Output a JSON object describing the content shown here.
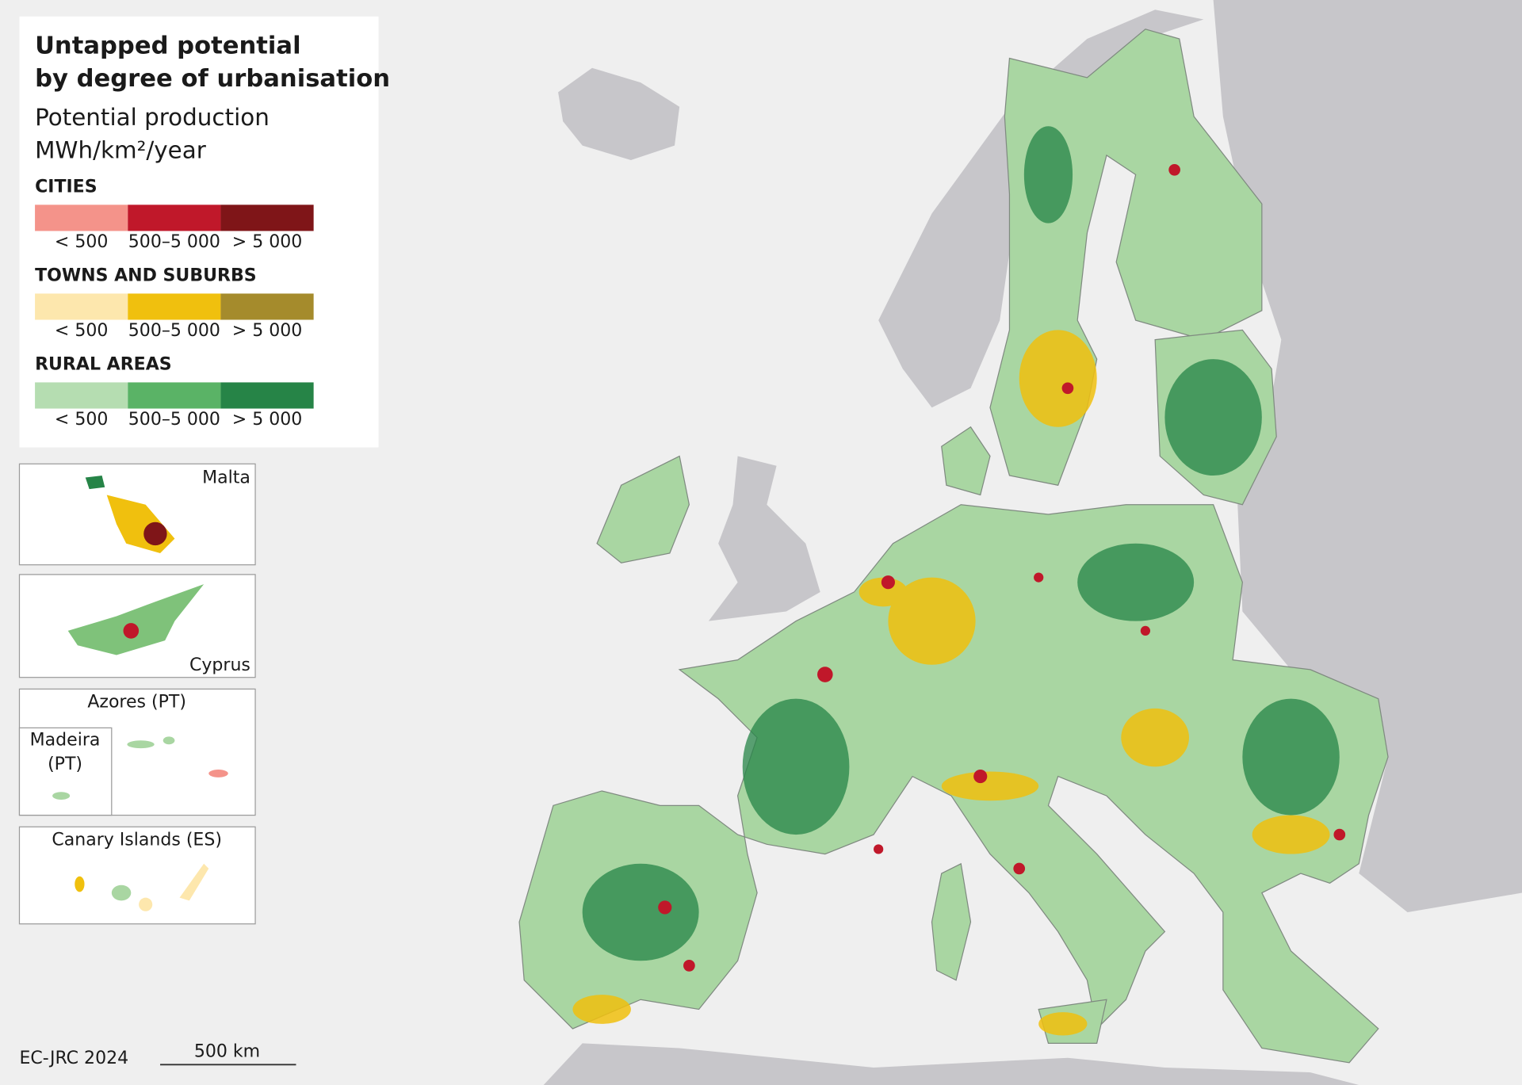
{
  "legend": {
    "title": [
      "Untapped potential",
      "by degree of urbanisation"
    ],
    "subtitle": [
      "Potential production",
      "MWh/km²/year"
    ],
    "groups": [
      {
        "name": "CITIES",
        "classes": [
          {
            "label": "< 500",
            "color": "#f4938a"
          },
          {
            "label": "500–5 000",
            "color": "#c0182a"
          },
          {
            "label": "> 5 000",
            "color": "#7f1518"
          }
        ]
      },
      {
        "name": "TOWNS AND SUBURBS",
        "classes": [
          {
            "label": "< 500",
            "color": "#fde7ad"
          },
          {
            "label": "500–5 000",
            "color": "#f0c00e"
          },
          {
            "label": "> 5 000",
            "color": "#a58b2c"
          }
        ]
      },
      {
        "name": "RURAL AREAS",
        "classes": [
          {
            "label": "< 500",
            "color": "#b5ddb1"
          },
          {
            "label": "500–5 000",
            "color": "#5ab366"
          },
          {
            "label": "> 5 000",
            "color": "#268447"
          }
        ]
      }
    ]
  },
  "insets": [
    "Malta",
    "Cyprus",
    "Azores (PT)",
    "Madeira",
    "(PT)",
    "Canary Islands (ES)"
  ],
  "credit": "EC-JRC 2024",
  "scale_bar": "500 km"
}
